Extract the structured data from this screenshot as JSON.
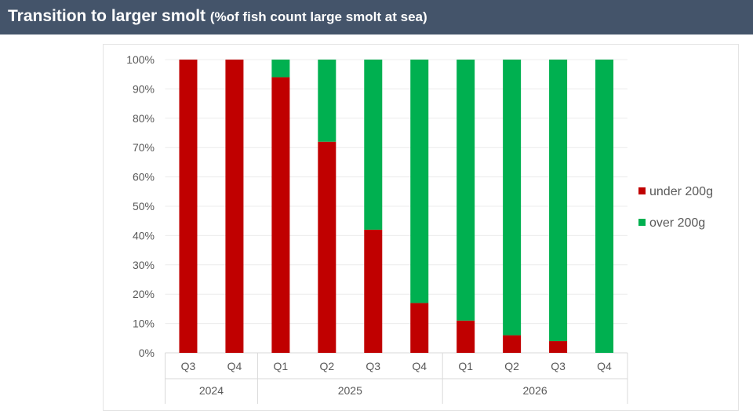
{
  "header": {
    "title": "Transition to larger smolt",
    "subtitle": "(%of fish count large smolt at sea)"
  },
  "chart_data": {
    "type": "bar",
    "stacked": true,
    "percent_stacked": true,
    "categories": [
      {
        "quarter": "Q3",
        "year": "2024"
      },
      {
        "quarter": "Q4",
        "year": "2024"
      },
      {
        "quarter": "Q1",
        "year": "2025"
      },
      {
        "quarter": "Q2",
        "year": "2025"
      },
      {
        "quarter": "Q3",
        "year": "2025"
      },
      {
        "quarter": "Q4",
        "year": "2025"
      },
      {
        "quarter": "Q1",
        "year": "2026"
      },
      {
        "quarter": "Q2",
        "year": "2026"
      },
      {
        "quarter": "Q3",
        "year": "2026"
      },
      {
        "quarter": "Q4",
        "year": "2026"
      }
    ],
    "year_groups": [
      "2024",
      "2025",
      "2026"
    ],
    "series": [
      {
        "name": "under 200g",
        "color": "#c00000",
        "values": [
          100,
          100,
          94,
          72,
          42,
          17,
          11,
          6,
          4,
          0
        ]
      },
      {
        "name": "over 200g",
        "color": "#00b050",
        "values": [
          0,
          0,
          6,
          28,
          58,
          83,
          89,
          94,
          96,
          100
        ]
      }
    ],
    "ylim": [
      0,
      100
    ],
    "yticks": [
      "0%",
      "10%",
      "20%",
      "30%",
      "40%",
      "50%",
      "60%",
      "70%",
      "80%",
      "90%",
      "100%"
    ],
    "grid": true,
    "legend": "right"
  }
}
